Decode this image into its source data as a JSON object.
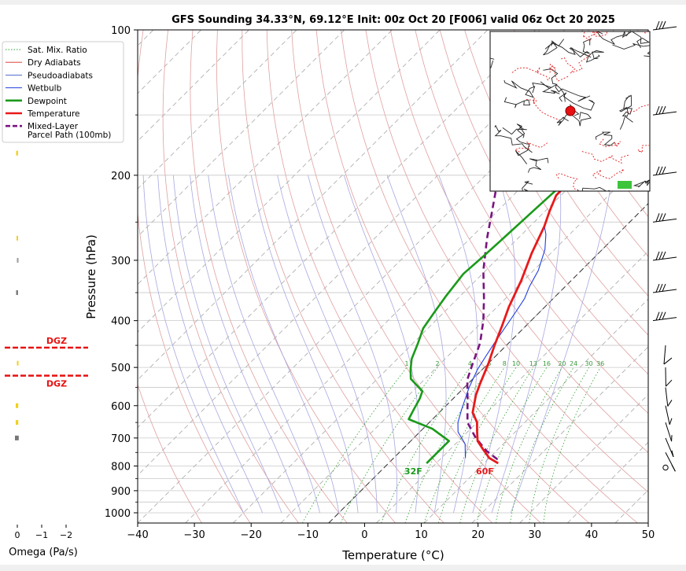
{
  "chart_data": {
    "type": "line",
    "title": "GFS Sounding 34.33°N, 69.12°E Init: 00z Oct 20 [F006] valid 06z Oct 20 2025",
    "xlabel": "Temperature (°C)",
    "ylabel": "Pressure (hPa)",
    "xlim": [
      -40,
      50
    ],
    "ylim": [
      1050,
      100
    ],
    "y_scale": "log",
    "grid": true,
    "legend_position": "upper-left",
    "x_ticks": [
      "−40",
      "−30",
      "−20",
      "−10",
      "0",
      "10",
      "20",
      "30",
      "40",
      "50"
    ],
    "y_ticks": [
      "100",
      "200",
      "300",
      "400",
      "500",
      "600",
      "700",
      "800",
      "900",
      "1000"
    ],
    "legend": [
      {
        "label": "Sat. Mix. Ratio",
        "color": "#2ca02c",
        "style": "dotted"
      },
      {
        "label": "Dry Adiabats",
        "color": "#d62728",
        "style": "solid-thin"
      },
      {
        "label": "Pseudoadiabats",
        "color": "#1f3fbf",
        "style": "solid-thin"
      },
      {
        "label": "Wetbulb",
        "color": "#1f3fdf",
        "style": "solid"
      },
      {
        "label": "Dewpoint",
        "color": "#1a9a1a",
        "style": "solid-thick"
      },
      {
        "label": "Temperature",
        "color": "#e8191a",
        "style": "solid-thick"
      },
      {
        "label": "Mixed-Layer",
        "label2": "Parcel Path (100mb)",
        "color": "#7a1480",
        "style": "dashed"
      }
    ],
    "series": [
      {
        "name": "Temperature",
        "color": "#e8191a",
        "points": [
          [
            23,
            790
          ],
          [
            20,
            770
          ],
          [
            17,
            740
          ],
          [
            14,
            710
          ],
          [
            12,
            680
          ],
          [
            10,
            650
          ],
          [
            7,
            620
          ],
          [
            4,
            570
          ],
          [
            2.5,
            540
          ],
          [
            0,
            490
          ],
          [
            -2.5,
            450
          ],
          [
            -5,
            410
          ],
          [
            -7.5,
            375
          ],
          [
            -10.5,
            330
          ],
          [
            -14,
            290
          ],
          [
            -17,
            255
          ],
          [
            -19,
            238
          ],
          [
            -21,
            220
          ],
          [
            -21,
            202
          ],
          [
            -20,
            190
          ],
          [
            -18.5,
            175
          ],
          [
            -17,
            160
          ],
          [
            -15.5,
            148
          ],
          [
            -13,
            135
          ],
          [
            -10.5,
            120
          ],
          [
            -8.5,
            110
          ],
          [
            -6,
            100
          ]
        ]
      },
      {
        "name": "Dewpoint",
        "color": "#1a9a1a",
        "points": [
          [
            8,
            790
          ],
          [
            8,
            760
          ],
          [
            8,
            710
          ],
          [
            2,
            670
          ],
          [
            -5,
            640
          ],
          [
            -6,
            610
          ],
          [
            -7,
            580
          ],
          [
            -8,
            560
          ],
          [
            -13,
            528
          ],
          [
            -15,
            505
          ],
          [
            -17,
            480
          ],
          [
            -19,
            445
          ],
          [
            -21,
            415
          ],
          [
            -22,
            385
          ],
          [
            -23,
            355
          ],
          [
            -24,
            320
          ],
          [
            -23.5,
            295
          ],
          [
            -23,
            265
          ],
          [
            -22.5,
            235
          ],
          [
            -22,
            210
          ],
          [
            -23,
            190
          ],
          [
            -24.5,
            160
          ],
          [
            -25,
            150
          ],
          [
            -24,
            135
          ],
          [
            -22.5,
            125
          ],
          [
            -21,
            113
          ],
          [
            -20,
            100
          ]
        ]
      },
      {
        "name": "Wetbulb",
        "color": "#1f3fdf",
        "points": [
          [
            15,
            770
          ],
          [
            12,
            720
          ],
          [
            8,
            680
          ],
          [
            6,
            650
          ],
          [
            4,
            610
          ],
          [
            1,
            550
          ],
          [
            -1,
            505
          ],
          [
            -2,
            475
          ],
          [
            -3,
            445
          ],
          [
            -5,
            385
          ],
          [
            -6,
            360
          ],
          [
            -7.5,
            340
          ],
          [
            -9,
            315
          ],
          [
            -12,
            285
          ],
          [
            -15,
            265
          ],
          [
            -17,
            255
          ]
        ]
      },
      {
        "name": "Mixed-Layer Parcel Path (100mb)",
        "color": "#7a1480",
        "points": [
          [
            22,
            775
          ],
          [
            18,
            745
          ],
          [
            13,
            700
          ],
          [
            8,
            650
          ],
          [
            3,
            580
          ],
          [
            -1,
            530
          ],
          [
            -3,
            495
          ],
          [
            -6,
            445
          ],
          [
            -10,
            400
          ],
          [
            -14.5,
            360
          ],
          [
            -20.5,
            315
          ],
          [
            -26.5,
            270
          ],
          [
            -31,
            238
          ],
          [
            -35,
            213
          ],
          [
            -40,
            190
          ],
          [
            -44,
            167
          ],
          [
            -48,
            147
          ],
          [
            -53,
            128
          ],
          [
            -57,
            113
          ],
          [
            -61,
            100
          ]
        ]
      }
    ],
    "annotations": [
      {
        "text": "32F",
        "color": "#1a9a1a",
        "x": 8,
        "p": 820
      },
      {
        "text": "60F",
        "color": "#e8191a",
        "x": 23,
        "p": 820
      }
    ],
    "mixing_ratio_labels": [
      "1",
      "2",
      "4",
      "6",
      "8",
      "10",
      "13",
      "16",
      "20",
      "24",
      "30",
      "36"
    ],
    "mixing_ratio_temps": [
      -5.5,
      2.5,
      11,
      16,
      20,
      23,
      27.5,
      31,
      35,
      38,
      42,
      45
    ],
    "omega_panel": {
      "xlabel": "Omega (Pa/s)",
      "ticks": [
        "0",
        "−1",
        "−2"
      ],
      "dgz_label": "DGZ",
      "bars": [
        {
          "p": 180,
          "value": 0.3,
          "color": "#f0d020"
        },
        {
          "p": 270,
          "value": 0.2,
          "color": "#f0d020"
        },
        {
          "p": 300,
          "value": 0.1,
          "color": "#999999"
        },
        {
          "p": 350,
          "value": 0.3,
          "color": "#777777"
        },
        {
          "p": 490,
          "value": 0.1,
          "color": "#f0d020"
        },
        {
          "p": 600,
          "value": 0.4,
          "color": "#f0d020"
        },
        {
          "p": 650,
          "value": 0.4,
          "color": "#f0d020"
        },
        {
          "p": 700,
          "value": 0.6,
          "color": "#777777"
        }
      ],
      "dgz_pressures": [
        455,
        520
      ]
    },
    "wind_barbs_pressures": [
      100,
      150,
      200,
      250,
      300,
      350,
      400,
      450,
      500,
      550,
      600,
      650,
      700,
      750,
      800
    ]
  }
}
